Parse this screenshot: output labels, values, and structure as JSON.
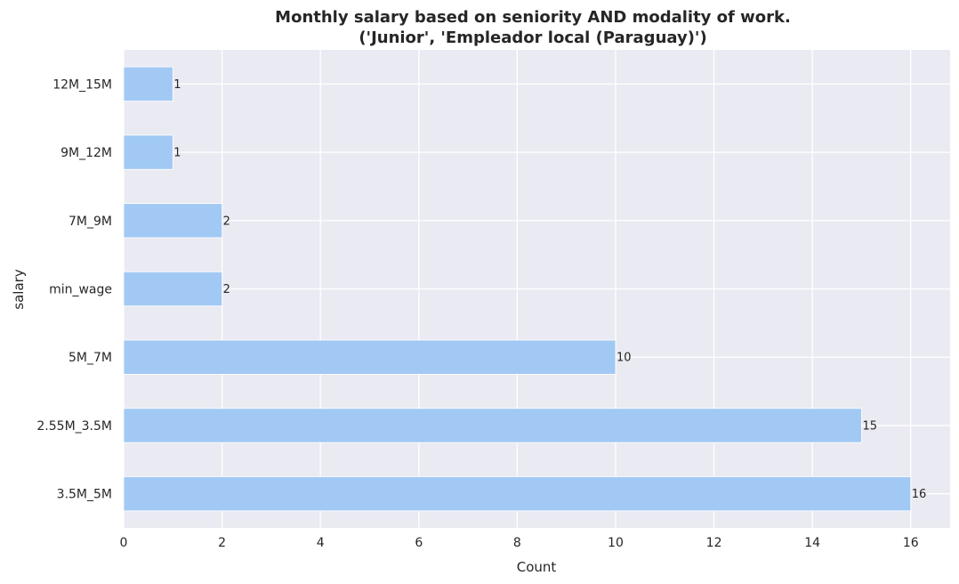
{
  "chart_data": {
    "type": "bar",
    "orientation": "horizontal",
    "title": "Monthly salary based on seniority AND modality of work.",
    "subtitle": "('Junior', 'Empleador local (Paraguay)')",
    "xlabel": "Count",
    "ylabel": "salary",
    "categories": [
      "12M_15M",
      "9M_12M",
      "7M_9M",
      "min_wage",
      "5M_7M",
      "2.55M_3.5M",
      "3.5M_5M"
    ],
    "values": [
      1,
      1,
      2,
      2,
      10,
      15,
      16
    ],
    "data_labels": [
      "1",
      "1",
      "2",
      "2",
      "10",
      "15",
      "16"
    ],
    "xlim": [
      0,
      16.8
    ],
    "xticks": [
      0,
      2,
      4,
      6,
      8,
      10,
      12,
      14,
      16
    ],
    "xtick_labels": [
      "0",
      "2",
      "4",
      "6",
      "8",
      "10",
      "12",
      "14",
      "16"
    ],
    "grid": true,
    "legend": "none",
    "colors": {
      "bar": "#a1c9f4",
      "plot_background": "#eaeaf2",
      "grid": "#ffffff",
      "text": "#262626"
    }
  }
}
